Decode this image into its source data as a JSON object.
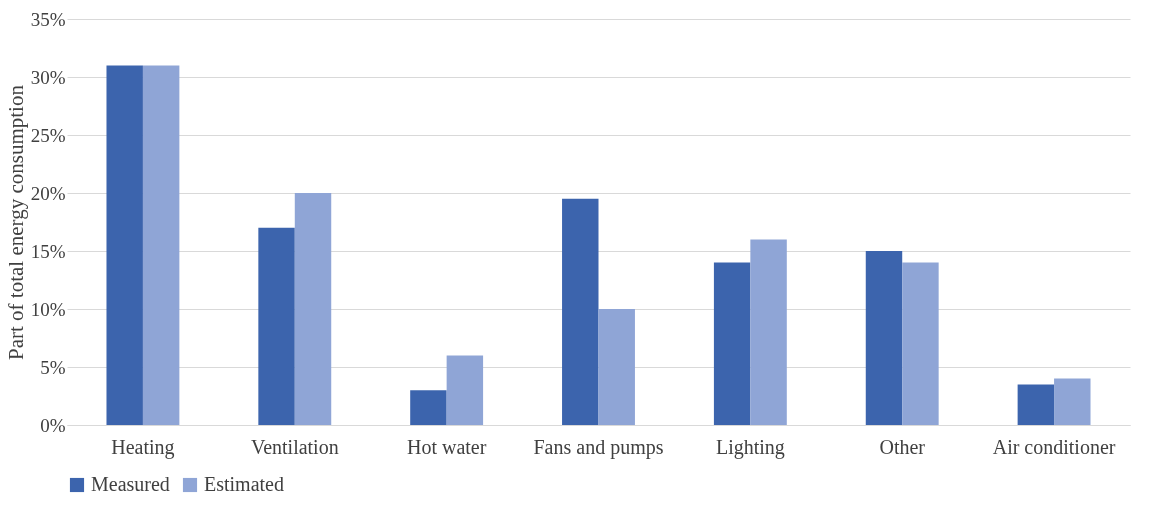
{
  "chart_data": {
    "type": "bar",
    "ylabel": "Part of total energy consumption",
    "categories": [
      "Heating",
      "Ventilation",
      "Hot water",
      "Fans and pumps",
      "Lighting",
      "Other",
      "Air conditioner"
    ],
    "series": [
      {
        "name": "Measured",
        "color": "#3c64ad",
        "values": [
          31,
          17,
          3,
          19.5,
          14,
          15,
          3.5
        ]
      },
      {
        "name": "Estimated",
        "color": "#8fa5d6",
        "values": [
          31,
          20,
          6,
          10,
          16,
          14,
          4
        ]
      }
    ],
    "ylim": [
      0,
      35
    ],
    "yticks": [
      {
        "value": 0,
        "label": "0%"
      },
      {
        "value": 5,
        "label": "5%"
      },
      {
        "value": 10,
        "label": "10%"
      },
      {
        "value": 15,
        "label": "15%"
      },
      {
        "value": 20,
        "label": "20%"
      },
      {
        "value": 25,
        "label": "25%"
      },
      {
        "value": 30,
        "label": "30%"
      },
      {
        "value": 35,
        "label": "35%"
      }
    ],
    "grid": "y",
    "legend": "bottom"
  }
}
